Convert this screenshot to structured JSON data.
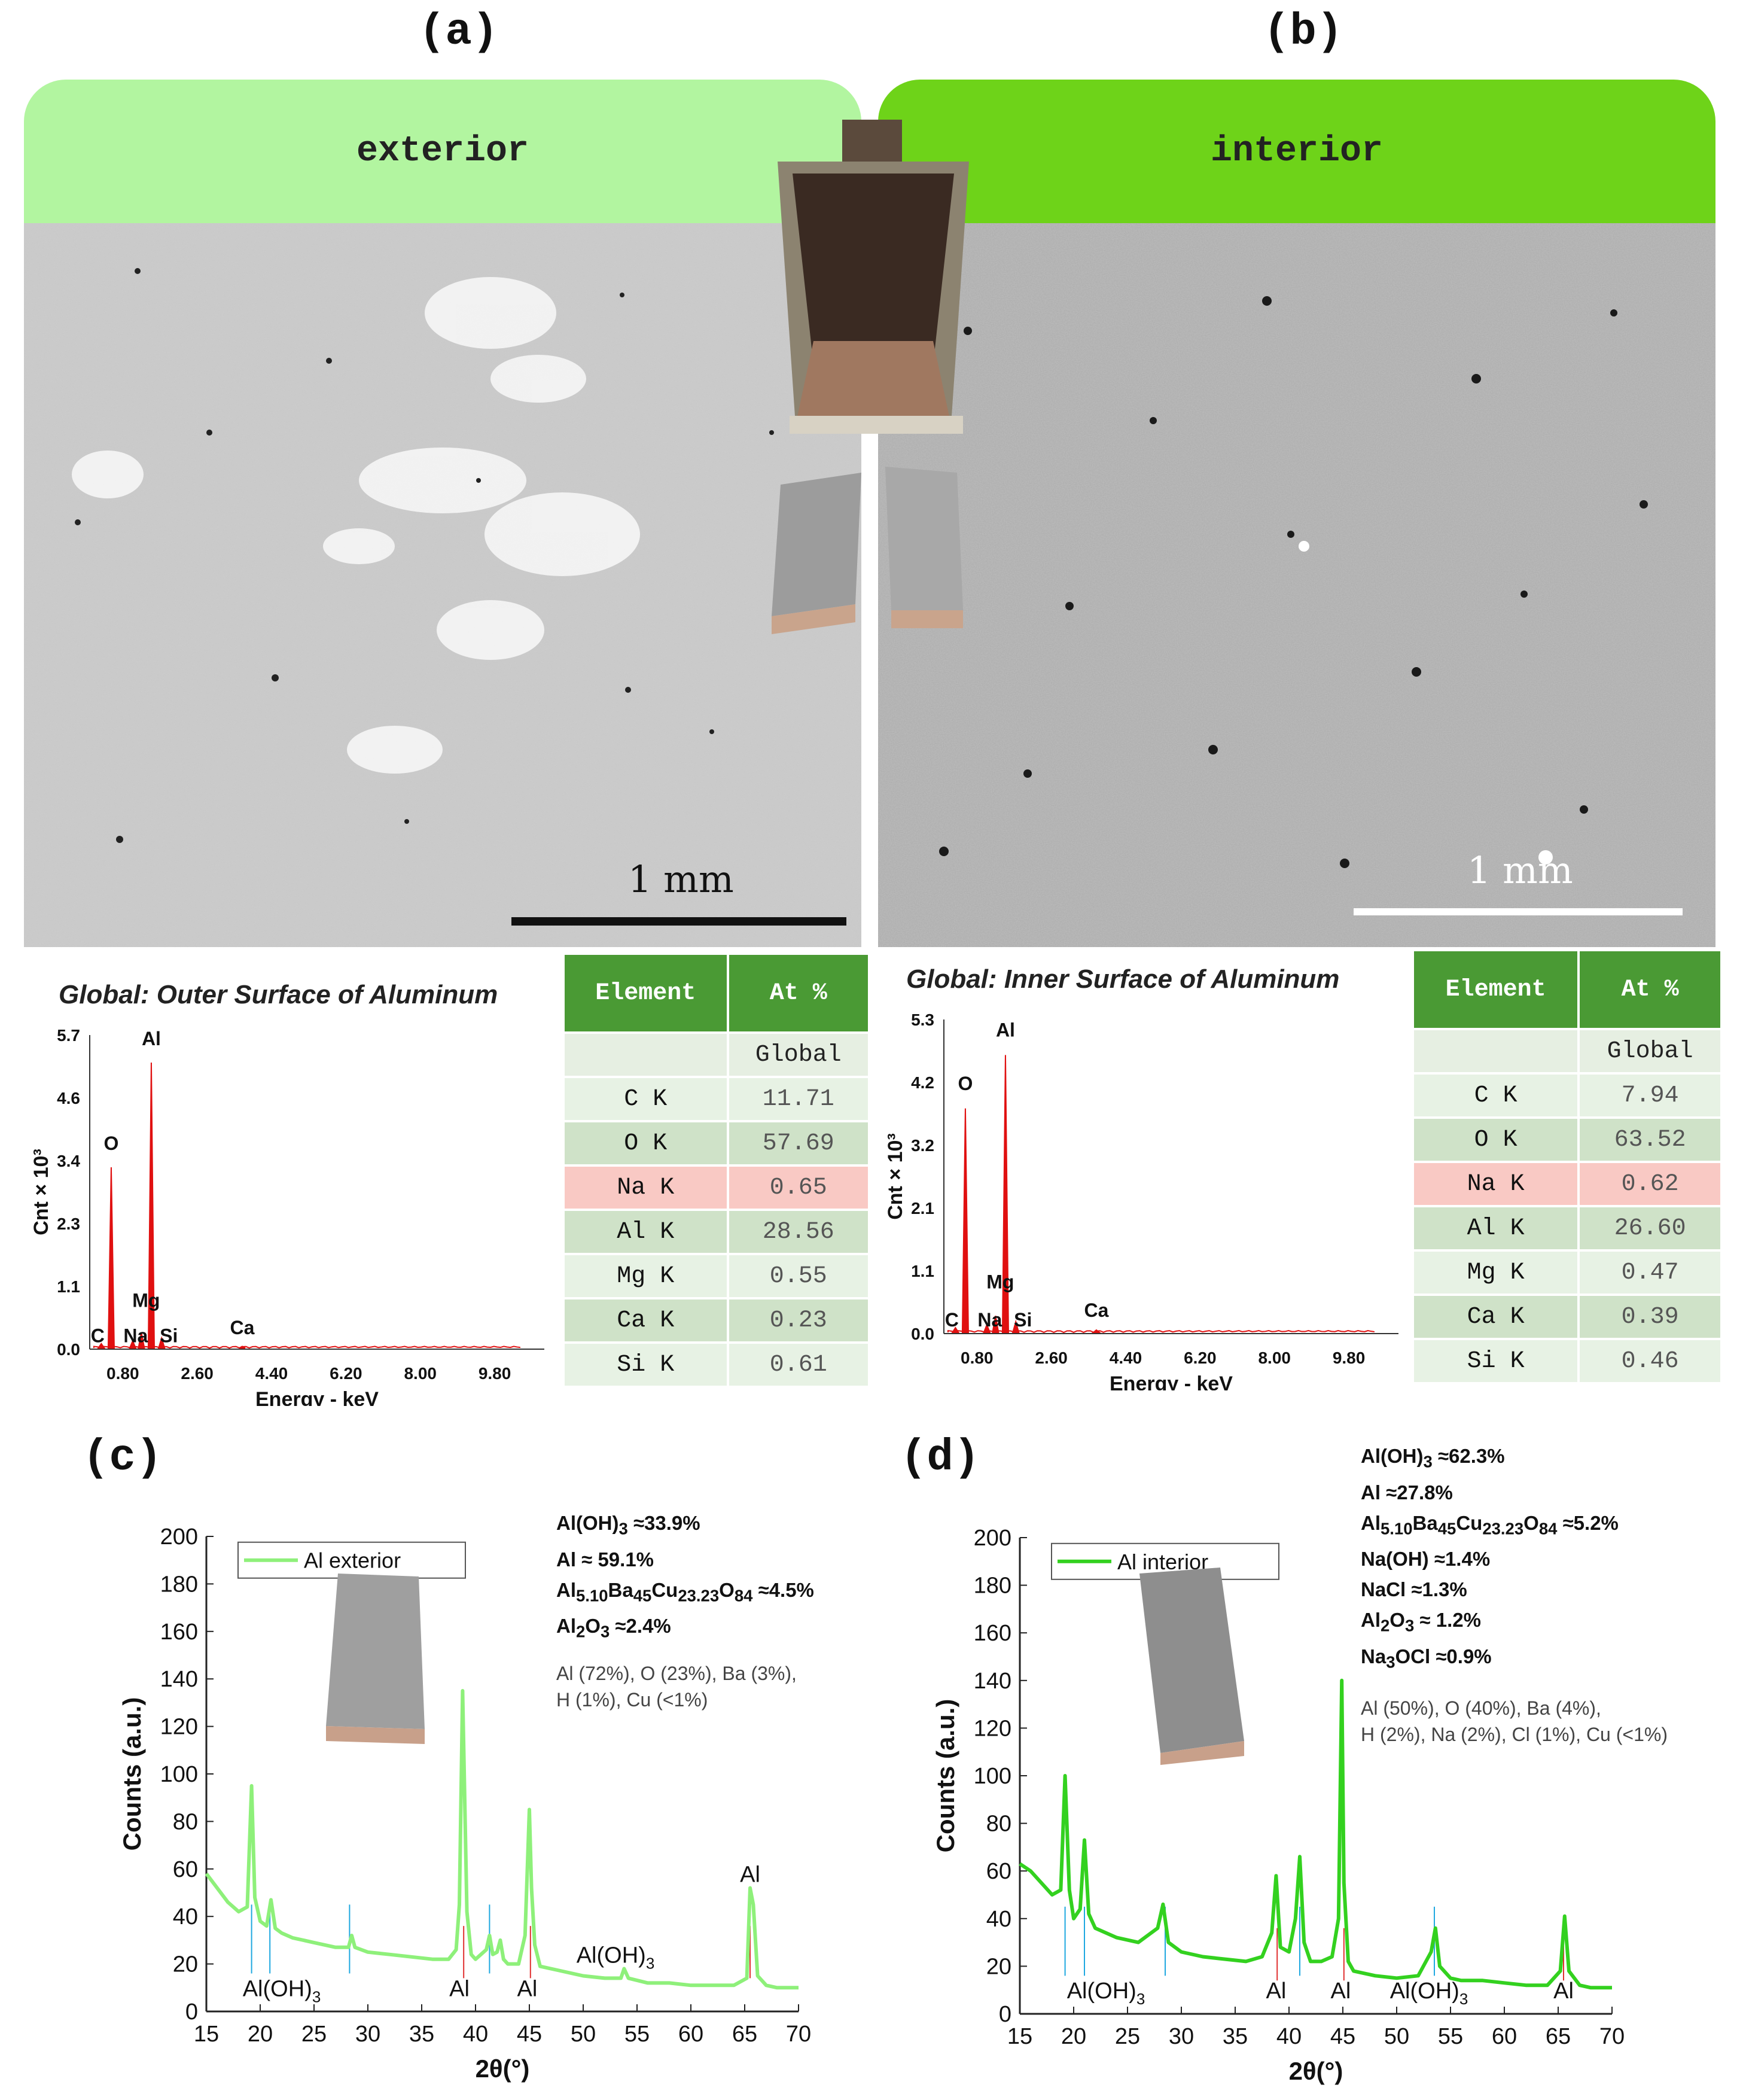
{
  "panels": {
    "a_letter": "(a)",
    "b_letter": "(b)",
    "c_letter": "(c)",
    "d_letter": "(d)"
  },
  "headers": {
    "exterior": "exterior",
    "interior": "interior",
    "exterior_color": "#b2f5a0",
    "interior_color": "#6ed319"
  },
  "sem": {
    "exterior_scale": "1 mm",
    "interior_scale": "1 mm"
  },
  "eds_outer": {
    "table": {
      "header_element": "Element",
      "header_at": "At %",
      "sub_header": "Global",
      "rows": [
        {
          "element": "C K",
          "value": "11.71"
        },
        {
          "element": "O K",
          "value": "57.69"
        },
        {
          "element": "Na K",
          "value": "0.65"
        },
        {
          "element": "Al K",
          "value": "28.56"
        },
        {
          "element": "Mg K",
          "value": "0.55"
        },
        {
          "element": "Ca K",
          "value": "0.23"
        },
        {
          "element": "Si K",
          "value": "0.61"
        }
      ]
    }
  },
  "eds_inner": {
    "table": {
      "header_element": "Element",
      "header_at": "At %",
      "sub_header": "Global",
      "rows": [
        {
          "element": "C K",
          "value": "7.94"
        },
        {
          "element": "O K",
          "value": "63.52"
        },
        {
          "element": "Na K",
          "value": "0.62"
        },
        {
          "element": "Al K",
          "value": "26.60"
        },
        {
          "element": "Mg K",
          "value": "0.47"
        },
        {
          "element": "Ca K",
          "value": "0.39"
        },
        {
          "element": "Si K",
          "value": "0.46"
        }
      ]
    }
  },
  "xrd_c_notes": {
    "phases": [
      "Al(OH)",
      "3",
      " ≈33.9%"
    ],
    "al": "Al ≈ 59.1%",
    "ba": [
      "Al",
      "5.10",
      "Ba",
      "45",
      "Cu",
      "23.23",
      "O",
      "84",
      " ≈4.5%"
    ],
    "al2o3": [
      "Al",
      "2",
      "O",
      "3",
      " ≈2.4%"
    ],
    "elements_1": "Al (72%), O (23%), Ba (3%),",
    "elements_2": "H (1%), Cu (<1%)"
  },
  "xrd_d_notes": {
    "phases": [
      "Al(OH)",
      "3",
      " ≈62.3%"
    ],
    "al": "Al ≈27.8%",
    "ba": [
      "Al",
      "5.10",
      "Ba",
      "45",
      "Cu",
      "23.23",
      "O",
      "84",
      " ≈5.2%"
    ],
    "naoh": "Na(OH) ≈1.4%",
    "nacl": "NaCl ≈1.3%",
    "al2o3": [
      "Al",
      "2",
      "O",
      "3",
      " ≈ 1.2%"
    ],
    "na3ocl": [
      "Na",
      "3",
      "OCl ≈0.9%"
    ],
    "elements_1": "Al (50%), O (40%), Ba (4%),",
    "elements_2": "H (2%), Na (2%), Cl (1%), Cu (<1%)"
  },
  "chart_data": [
    {
      "type": "bar",
      "id": "eds_outer",
      "title": "Global: Outer Surface of Aluminum",
      "xlabel": "Energy - keV",
      "ylabel": "Cnt × 10³",
      "xticks": [
        "0.80",
        "2.60",
        "4.40",
        "6.20",
        "8.00",
        "9.80"
      ],
      "yticks": [
        "0.0",
        "1.1",
        "2.3",
        "3.4",
        "4.6",
        "5.7"
      ],
      "xlim": [
        0,
        11.0
      ],
      "ylim": [
        0,
        5.7
      ],
      "peaks": [
        {
          "label": "C",
          "x": 0.28,
          "y": 0.1
        },
        {
          "label": "O",
          "x": 0.52,
          "y": 3.3
        },
        {
          "label": "Na",
          "x": 1.04,
          "y": 0.15
        },
        {
          "label": "Mg",
          "x": 1.25,
          "y": 0.3
        },
        {
          "label": "Al",
          "x": 1.49,
          "y": 5.2
        },
        {
          "label": "Si",
          "x": 1.74,
          "y": 0.2
        },
        {
          "label": "Ca",
          "x": 3.69,
          "y": 0.05
        }
      ],
      "color": "#e01010"
    },
    {
      "type": "bar",
      "id": "eds_inner",
      "title": "Global: Inner Surface of Aluminum",
      "xlabel": "Energy - keV",
      "ylabel": "Cnt × 10³",
      "xticks": [
        "0.80",
        "2.60",
        "4.40",
        "6.20",
        "8.00",
        "9.80"
      ],
      "yticks": [
        "0.0",
        "1.1",
        "2.1",
        "3.2",
        "4.2",
        "5.3"
      ],
      "xlim": [
        0,
        11.0
      ],
      "ylim": [
        0,
        5.3
      ],
      "peaks": [
        {
          "label": "C",
          "x": 0.28,
          "y": 0.1
        },
        {
          "label": "O",
          "x": 0.52,
          "y": 3.8
        },
        {
          "label": "Na",
          "x": 1.04,
          "y": 0.15
        },
        {
          "label": "Mg",
          "x": 1.25,
          "y": 0.3
        },
        {
          "label": "Al",
          "x": 1.49,
          "y": 4.7
        },
        {
          "label": "Si",
          "x": 1.74,
          "y": 0.2
        },
        {
          "label": "Ca",
          "x": 3.69,
          "y": 0.06
        }
      ],
      "color": "#e01010"
    },
    {
      "type": "line",
      "id": "xrd_c",
      "xlabel": "2θ(°)",
      "ylabel": "Counts (a.u.)",
      "xlim": [
        15,
        70
      ],
      "ylim": [
        0,
        200
      ],
      "xticks": [
        15,
        20,
        25,
        30,
        35,
        40,
        45,
        50,
        55,
        60,
        65,
        70
      ],
      "yticks": [
        0,
        20,
        40,
        60,
        80,
        100,
        120,
        140,
        160,
        180,
        200
      ],
      "series": [
        {
          "name": "Al exterior",
          "color": "#8ef07a",
          "x": [
            15,
            16,
            17,
            18,
            18.8,
            19.2,
            19.5,
            20,
            20.6,
            21,
            21.4,
            22,
            23,
            25,
            27,
            28.2,
            28.5,
            28.8,
            30,
            32,
            34,
            36,
            37.5,
            38.2,
            38.5,
            38.8,
            39.2,
            39.6,
            40,
            41,
            41.3,
            41.6,
            42,
            42.3,
            42.6,
            43,
            44,
            44.6,
            45,
            45.2,
            45.5,
            46,
            48,
            50,
            52,
            53.5,
            53.8,
            54.2,
            56,
            58,
            60,
            62,
            64,
            65.2,
            65.5,
            65.8,
            66.2,
            67,
            68,
            70
          ],
          "y": [
            58,
            52,
            46,
            42,
            44,
            95,
            48,
            38,
            36,
            47,
            35,
            33,
            31,
            29,
            27,
            27,
            32,
            27,
            25,
            24,
            23,
            22,
            22,
            26,
            45,
            135,
            42,
            24,
            22,
            26,
            32,
            24,
            25,
            30,
            22,
            20,
            20,
            32,
            85,
            52,
            28,
            19,
            17,
            15,
            14,
            14,
            18,
            14,
            12,
            12,
            11,
            11,
            11,
            14,
            52,
            45,
            15,
            11,
            10,
            10
          ]
        }
      ],
      "annotations": [
        {
          "text": "Al(OH)3",
          "x": 22.0,
          "y": 10
        },
        {
          "text": "Al",
          "x": 38.5,
          "y": 10
        },
        {
          "text": "Al",
          "x": 44.8,
          "y": 10
        },
        {
          "text": "Al(OH)3",
          "x": 53.0,
          "y": 24
        },
        {
          "text": "Al",
          "x": 65.5,
          "y": 58
        }
      ],
      "ref_lines_blue": [
        19.2,
        20.9,
        28.3,
        41.3
      ],
      "ref_lines_red": [
        38.9,
        45.1,
        65.5
      ]
    },
    {
      "type": "line",
      "id": "xrd_d",
      "xlabel": "2θ(°)",
      "ylabel": "Counts (a.u.)",
      "xlim": [
        15,
        70
      ],
      "ylim": [
        0,
        200
      ],
      "xticks": [
        15,
        20,
        25,
        30,
        35,
        40,
        45,
        50,
        55,
        60,
        65,
        70
      ],
      "yticks": [
        0,
        20,
        40,
        60,
        80,
        100,
        120,
        140,
        160,
        180,
        200
      ],
      "series": [
        {
          "name": "Al interior",
          "color": "#33d11f",
          "x": [
            15,
            16,
            17,
            18,
            18.8,
            19.2,
            19.6,
            20,
            20.6,
            21,
            21.4,
            22,
            24,
            26,
            27.8,
            28.3,
            28.8,
            30,
            32,
            34,
            36,
            37.5,
            38.4,
            38.8,
            39.2,
            40,
            40.6,
            41,
            41.4,
            42,
            43,
            44,
            44.6,
            44.9,
            45.1,
            45.5,
            46,
            48,
            50,
            52,
            53.2,
            53.6,
            54,
            55,
            56,
            58,
            60,
            62,
            64,
            65.2,
            65.6,
            66,
            67,
            68,
            70
          ],
          "y": [
            63,
            60,
            55,
            50,
            52,
            100,
            52,
            40,
            44,
            73,
            42,
            36,
            32,
            30,
            36,
            46,
            30,
            26,
            24,
            23,
            22,
            24,
            34,
            58,
            28,
            26,
            40,
            66,
            30,
            22,
            22,
            24,
            40,
            140,
            55,
            22,
            18,
            16,
            15,
            16,
            26,
            36,
            20,
            15,
            14,
            14,
            13,
            12,
            12,
            18,
            41,
            18,
            12,
            11,
            11
          ]
        }
      ],
      "annotations": [
        {
          "text": "Al(OH)3",
          "x": 23.0,
          "y": 10
        },
        {
          "text": "Al",
          "x": 38.8,
          "y": 10
        },
        {
          "text": "Al",
          "x": 44.8,
          "y": 10
        },
        {
          "text": "Al(OH)3",
          "x": 53.0,
          "y": 10
        },
        {
          "text": "Al",
          "x": 65.5,
          "y": 10
        }
      ],
      "ref_lines_blue": [
        19.2,
        21.0,
        28.5,
        41.0,
        53.5
      ],
      "ref_lines_red": [
        38.9,
        45.1,
        65.5
      ]
    }
  ]
}
